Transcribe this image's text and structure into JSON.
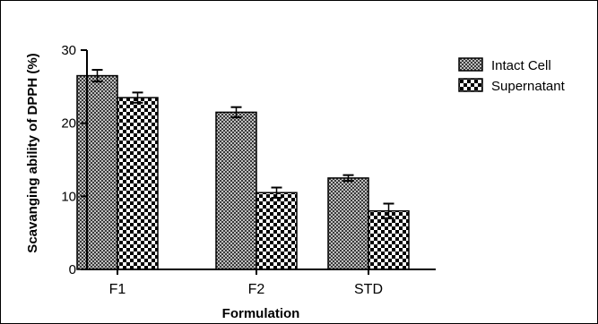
{
  "chart_data": {
    "type": "bar",
    "title": "",
    "xlabel": "Formulation",
    "ylabel": "Scavanging ability of DPPH (%)",
    "categories": [
      "F1",
      "F2",
      "STD"
    ],
    "ylim": [
      0,
      30
    ],
    "yticks": [
      0,
      10,
      20,
      30
    ],
    "grid": false,
    "legend_position": "top-right",
    "error_bars": true,
    "series": [
      {
        "name": "Intact Cell",
        "values": [
          26.5,
          21.5,
          12.5
        ],
        "errors": [
          0.8,
          0.7,
          0.4
        ],
        "pattern": "fine-checker"
      },
      {
        "name": "Supernatant",
        "values": [
          23.5,
          10.5,
          8.0
        ],
        "errors": [
          0.7,
          0.7,
          1.0
        ],
        "pattern": "coarse-checker"
      }
    ]
  }
}
